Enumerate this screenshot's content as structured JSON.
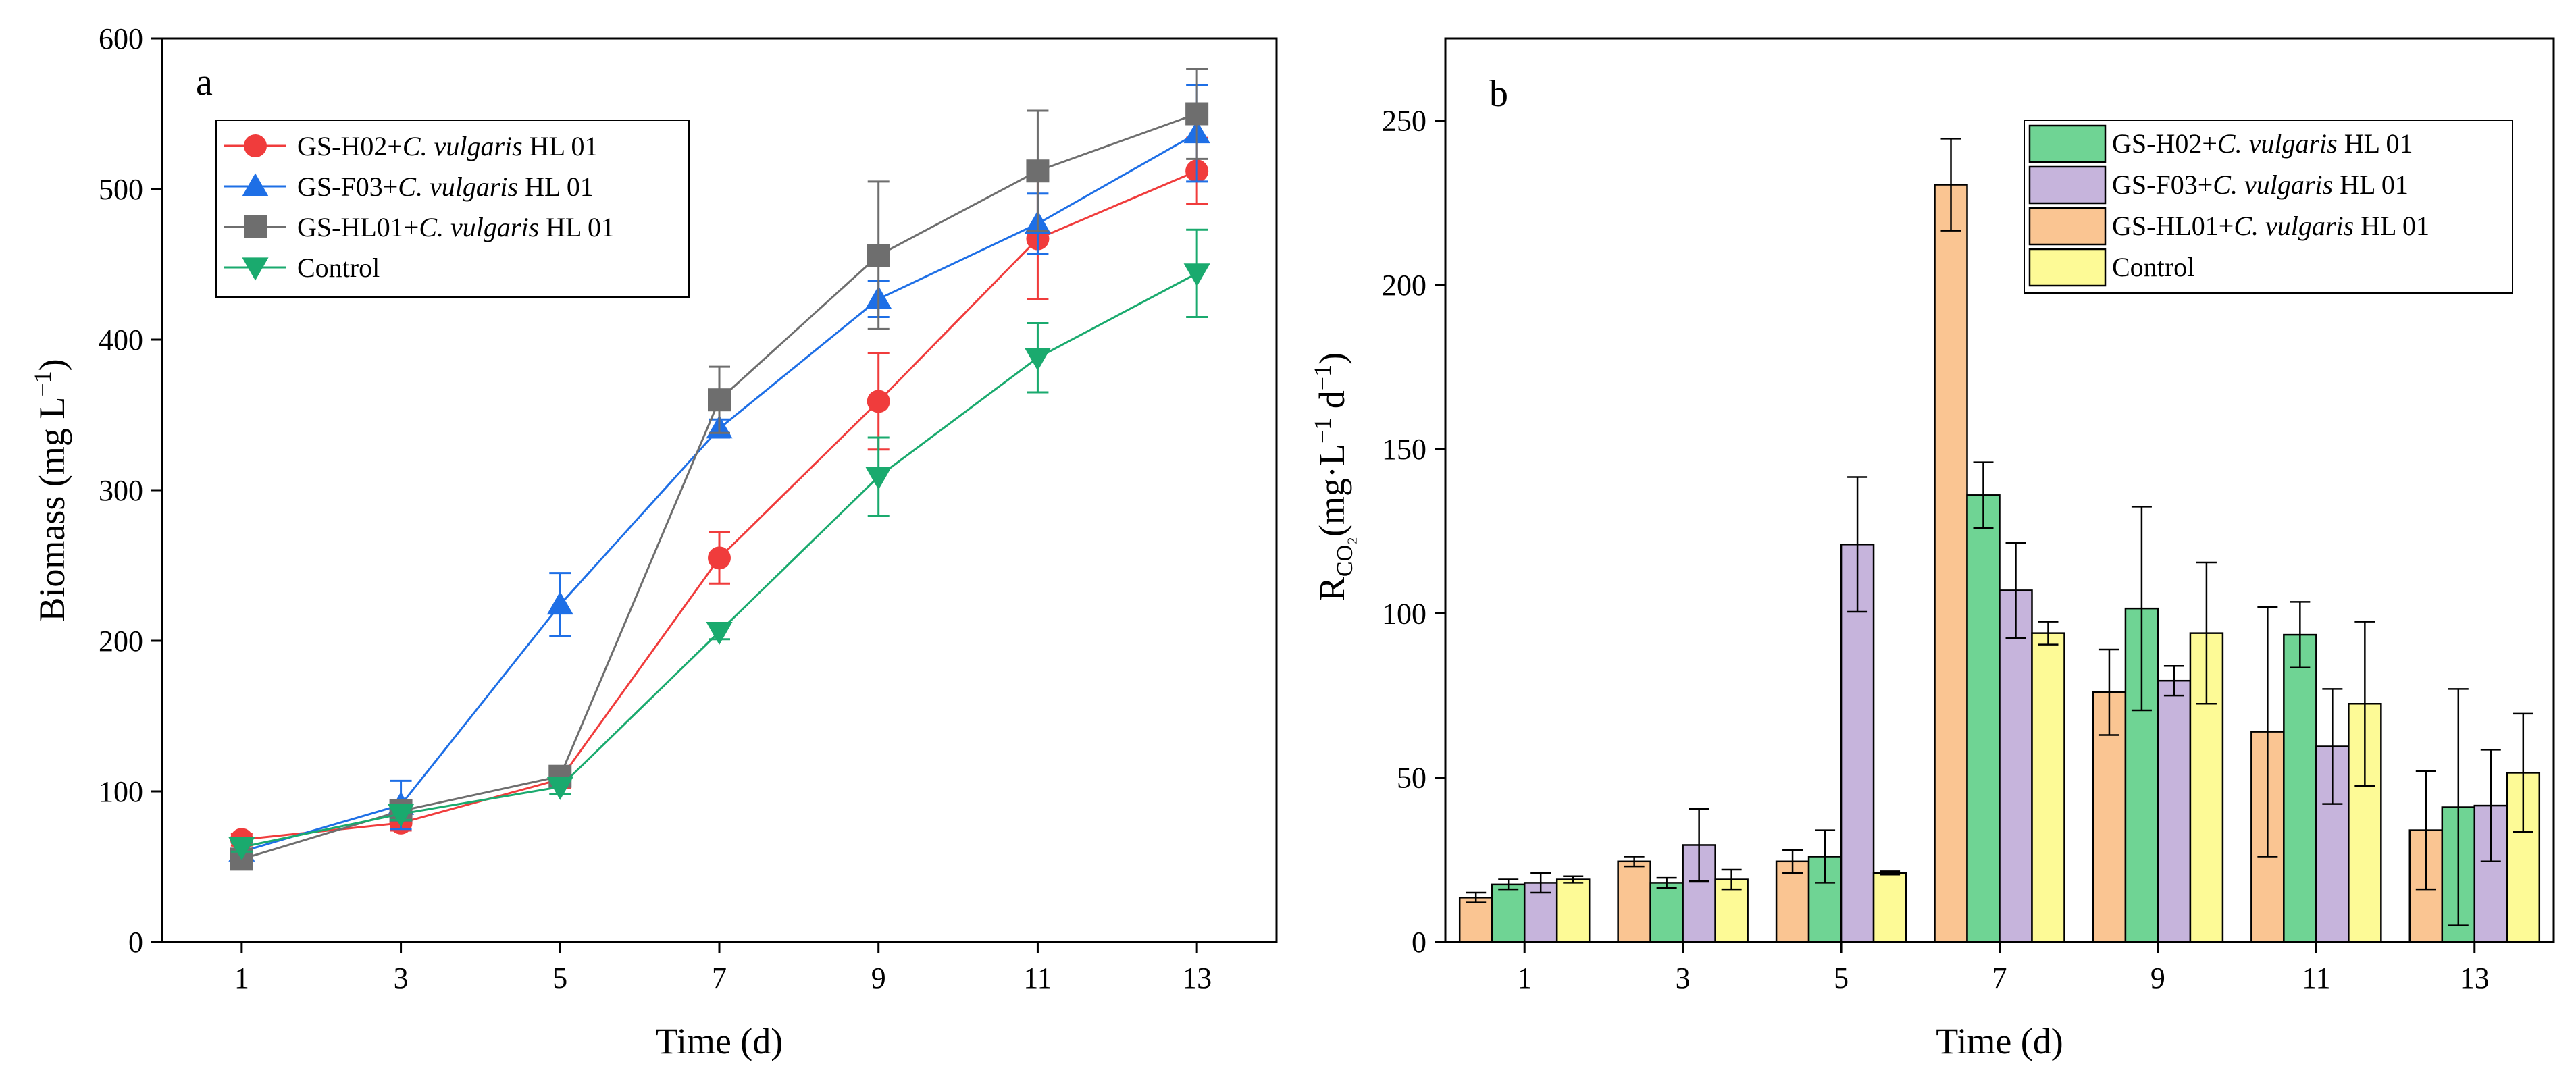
{
  "chart_data": [
    {
      "type": "line",
      "panel_label": "a",
      "xlabel": "Time (d)",
      "ylabel": "Biomass (mg L",
      "ylabel_sup": "−1",
      "ylabel_close": ")",
      "x": [
        1,
        3,
        5,
        7,
        9,
        11,
        13
      ],
      "xlim": [
        0,
        14
      ],
      "ylim": [
        0,
        600
      ],
      "xticks": [
        "1",
        "3",
        "5",
        "7",
        "9",
        "11",
        "13"
      ],
      "yticks": [
        "0",
        "100",
        "200",
        "300",
        "400",
        "500",
        "600"
      ],
      "legend_position": "top-left",
      "series": [
        {
          "name": "GS-H02+C. vulgaris HL 01",
          "strain": "GS-H02+",
          "species": "C. vulgaris",
          "suffix": " HL 01",
          "color": "#f03c3c",
          "marker": "circle",
          "values": [
            68,
            79,
            108,
            255,
            359,
            467,
            512
          ],
          "errors": [
            4,
            5,
            6,
            17,
            32,
            40,
            22
          ]
        },
        {
          "name": "GS-F03+C. vulgaris HL 01",
          "strain": "GS-F03+",
          "species": "C. vulgaris",
          "suffix": " HL 01",
          "color": "#1e6fe6",
          "marker": "triangle-up",
          "values": [
            60,
            91,
            224,
            341,
            427,
            477,
            537
          ],
          "errors": [
            6,
            16,
            21,
            6,
            12,
            20,
            32
          ]
        },
        {
          "name": "GS-HL01+C. vulgaris HL 01",
          "strain": "GS-HL01+",
          "species": "C. vulgaris",
          "suffix": " HL 01",
          "color": "#6e6e6e",
          "marker": "square",
          "values": [
            55,
            87,
            110,
            360,
            456,
            512,
            550
          ],
          "errors": [
            4,
            4,
            4,
            22,
            49,
            40,
            30
          ]
        },
        {
          "name": "Control",
          "strain": "Control",
          "species": "",
          "suffix": "",
          "color": "#1aaa6e",
          "marker": "triangle-down",
          "values": [
            63,
            85,
            103,
            206,
            309,
            388,
            444
          ],
          "errors": [
            3,
            4,
            5,
            5,
            26,
            23,
            29
          ]
        }
      ]
    },
    {
      "type": "bar",
      "panel_label": "b",
      "xlabel": "Time (d)",
      "ylabel_main": "R",
      "ylabel_sub": "CO₂",
      "ylabel_rest": "(mg·L",
      "ylabel_sup1": "−1",
      "ylabel_mid": " d",
      "ylabel_sup2": "−1",
      "ylabel_close": ")",
      "categories": [
        "1",
        "3",
        "5",
        "7",
        "9",
        "11",
        "13"
      ],
      "ylim": [
        0,
        275
      ],
      "yticks": [
        "0",
        "50",
        "100",
        "150",
        "200",
        "250"
      ],
      "legend_position": "top-right",
      "bar_order": [
        2,
        0,
        1,
        3
      ],
      "series": [
        {
          "name": "GS-H02+C. vulgaris HL 01",
          "strain": "GS-H02+",
          "species": "C. vulgaris",
          "suffix": " HL 01",
          "color": "#6fd494",
          "values": [
            17.5,
            18,
            26,
            136,
            101.5,
            93.5,
            41
          ],
          "errors": [
            1.5,
            1.5,
            8,
            10,
            31,
            10,
            36
          ]
        },
        {
          "name": "GS-F03+C. vulgaris HL 01",
          "strain": "GS-F03+",
          "species": "C. vulgaris",
          "suffix": " HL 01",
          "color": "#c6b4dc",
          "values": [
            18,
            29.5,
            121,
            107,
            79.5,
            59.5,
            41.5
          ],
          "errors": [
            3,
            11,
            20.5,
            14.5,
            4.5,
            17.5,
            17
          ]
        },
        {
          "name": "GS-HL01+C. vulgaris HL 01",
          "strain": "GS-HL01+",
          "species": "C. vulgaris",
          "suffix": " HL 01",
          "color": "#fac592",
          "values": [
            13.5,
            24.5,
            24.5,
            230.5,
            76,
            64,
            34
          ],
          "errors": [
            1.5,
            1.5,
            3.5,
            14,
            13,
            38,
            18
          ]
        },
        {
          "name": "Control",
          "strain": "Control",
          "species": "",
          "suffix": "",
          "color": "#fdfa96",
          "values": [
            19,
            19,
            21,
            94,
            94,
            72.5,
            51.5
          ],
          "errors": [
            1,
            3,
            0.5,
            3.5,
            21.5,
            25,
            18
          ]
        }
      ]
    }
  ]
}
